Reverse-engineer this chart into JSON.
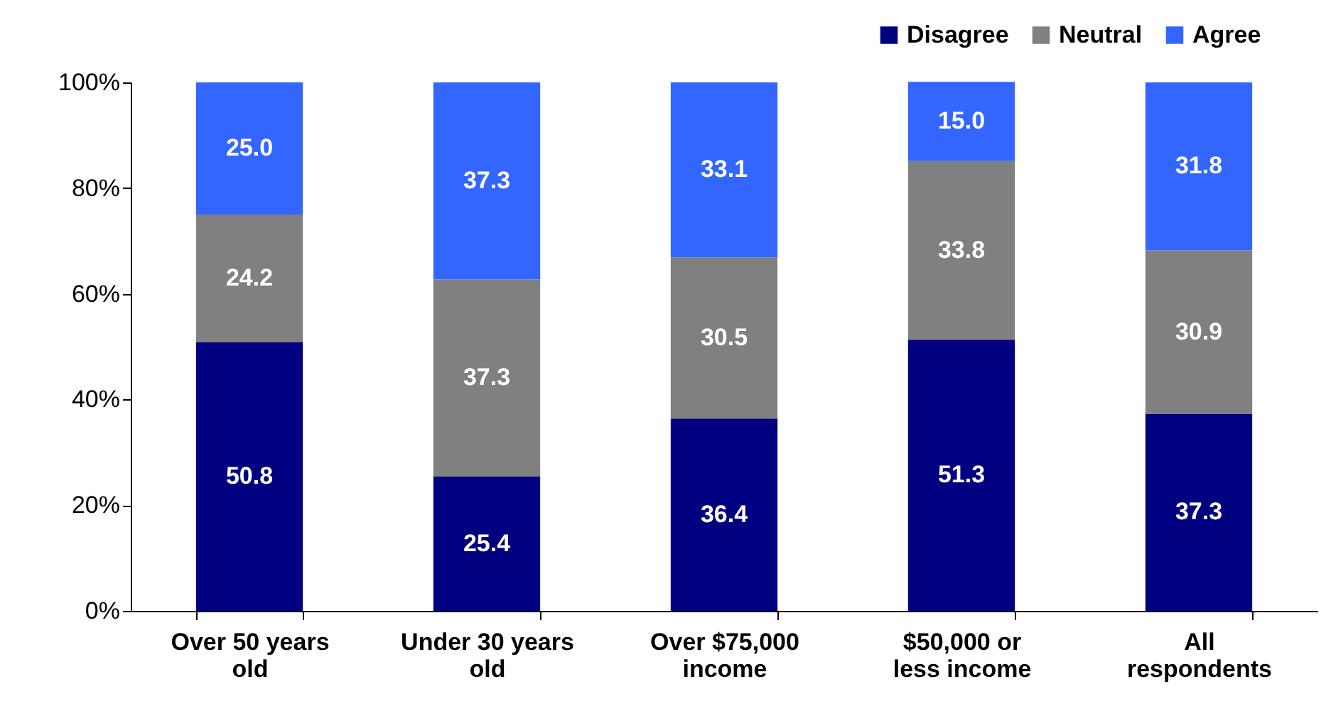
{
  "chart_data": {
    "type": "bar",
    "stacked": true,
    "categories": [
      "Over 50 years old",
      "Under 30 years old",
      "Over $75,000 income",
      "$50,000 or less income",
      "All respondents"
    ],
    "series": [
      {
        "name": "Disagree",
        "color": "#000080",
        "values": [
          50.8,
          25.4,
          36.4,
          51.3,
          37.3
        ],
        "value_labels": [
          "50.8",
          "25.4",
          "36.4",
          "51.3",
          "37.3"
        ]
      },
      {
        "name": "Neutral",
        "color": "#808080",
        "values": [
          24.2,
          37.3,
          30.5,
          33.8,
          30.9
        ],
        "value_labels": [
          "24.2",
          "37.3",
          "30.5",
          "33.8",
          "30.9"
        ]
      },
      {
        "name": "Agree",
        "color": "#3366ff",
        "values": [
          25.0,
          37.3,
          33.1,
          15.0,
          31.8
        ],
        "value_labels": [
          "25.0",
          "37.3",
          "33.1",
          "15.0",
          "31.8"
        ]
      }
    ],
    "ylim": [
      0,
      100
    ],
    "yticks": [
      {
        "value": 0,
        "label": "0%"
      },
      {
        "value": 20,
        "label": "20%"
      },
      {
        "value": 40,
        "label": "40%"
      },
      {
        "value": 60,
        "label": "60%"
      },
      {
        "value": 80,
        "label": "80%"
      },
      {
        "value": 100,
        "label": "100%"
      }
    ],
    "legend": "top right"
  }
}
